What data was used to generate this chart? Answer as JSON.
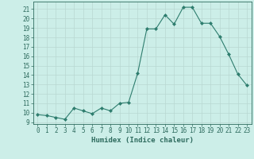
{
  "x": [
    0,
    1,
    2,
    3,
    4,
    5,
    6,
    7,
    8,
    9,
    10,
    11,
    12,
    13,
    14,
    15,
    16,
    17,
    18,
    19,
    20,
    21,
    22,
    23
  ],
  "y": [
    9.8,
    9.7,
    9.5,
    9.3,
    10.5,
    10.2,
    9.9,
    10.5,
    10.2,
    11.0,
    11.1,
    14.2,
    18.9,
    18.9,
    20.4,
    19.4,
    21.2,
    21.2,
    19.5,
    19.5,
    18.1,
    16.2,
    14.1,
    12.9
  ],
  "line_color": "#2e7d6e",
  "marker": "D",
  "marker_size": 2.0,
  "bg_color": "#cceee8",
  "grid_color": "#b8d8d2",
  "xlabel": "Humidex (Indice chaleur)",
  "xlim": [
    -0.5,
    23.5
  ],
  "ylim": [
    8.8,
    21.8
  ],
  "yticks": [
    9,
    10,
    11,
    12,
    13,
    14,
    15,
    16,
    17,
    18,
    19,
    20,
    21
  ],
  "xticks": [
    0,
    1,
    2,
    3,
    4,
    5,
    6,
    7,
    8,
    9,
    10,
    11,
    12,
    13,
    14,
    15,
    16,
    17,
    18,
    19,
    20,
    21,
    22,
    23
  ],
  "tick_color": "#2e6b5e",
  "label_fontsize": 5.5,
  "axis_label_fontsize": 6.5
}
